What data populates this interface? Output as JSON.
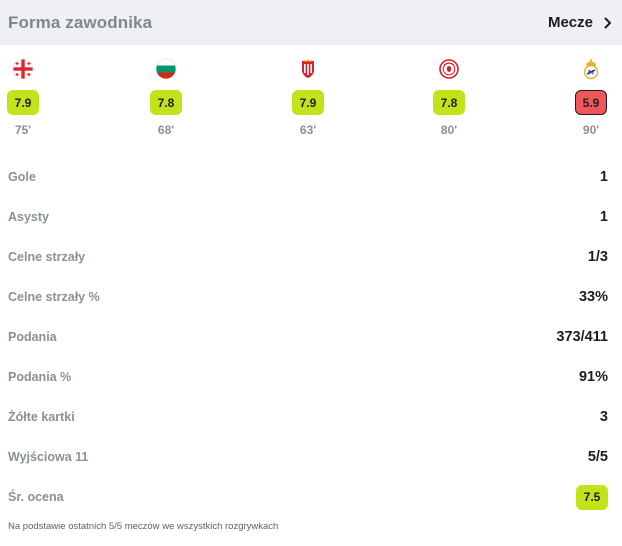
{
  "header": {
    "title": "Forma zawodnika",
    "link_label": "Mecze"
  },
  "matches": [
    {
      "team_icon": "georgia-flag-icon",
      "rating": "7.9",
      "minutes": "75'",
      "rating_color": "#c2e21a"
    },
    {
      "team_icon": "bulgaria-flag-icon",
      "rating": "7.8",
      "minutes": "68'",
      "rating_color": "#c2e21a"
    },
    {
      "team_icon": "girona-crest-icon",
      "rating": "7.9",
      "minutes": "63'",
      "rating_color": "#c2e21a"
    },
    {
      "team_icon": "olympiacos-crest-icon",
      "rating": "7.8",
      "minutes": "80'",
      "rating_color": "#c2e21a"
    },
    {
      "team_icon": "real-madrid-crest-icon",
      "rating": "5.9",
      "minutes": "90'",
      "rating_color": "#f0575a"
    }
  ],
  "stats": [
    {
      "label": "Gole",
      "value": "1"
    },
    {
      "label": "Asysty",
      "value": "1"
    },
    {
      "label": "Celne strzały",
      "value": "1/3"
    },
    {
      "label": "Celne strzały %",
      "value": "33%"
    },
    {
      "label": "Podania",
      "value": "373/411"
    },
    {
      "label": "Podania %",
      "value": "91%"
    },
    {
      "label": "Żółte kartki",
      "value": "3"
    },
    {
      "label": "Wyjściowa 11",
      "value": "5/5"
    }
  ],
  "average": {
    "label": "Śr. ocena",
    "value": "7.5",
    "color": "#c2e21a"
  },
  "footnote": "Na podstawie ostatnich 5/5 meczów we wszystkich rozgrywkach"
}
